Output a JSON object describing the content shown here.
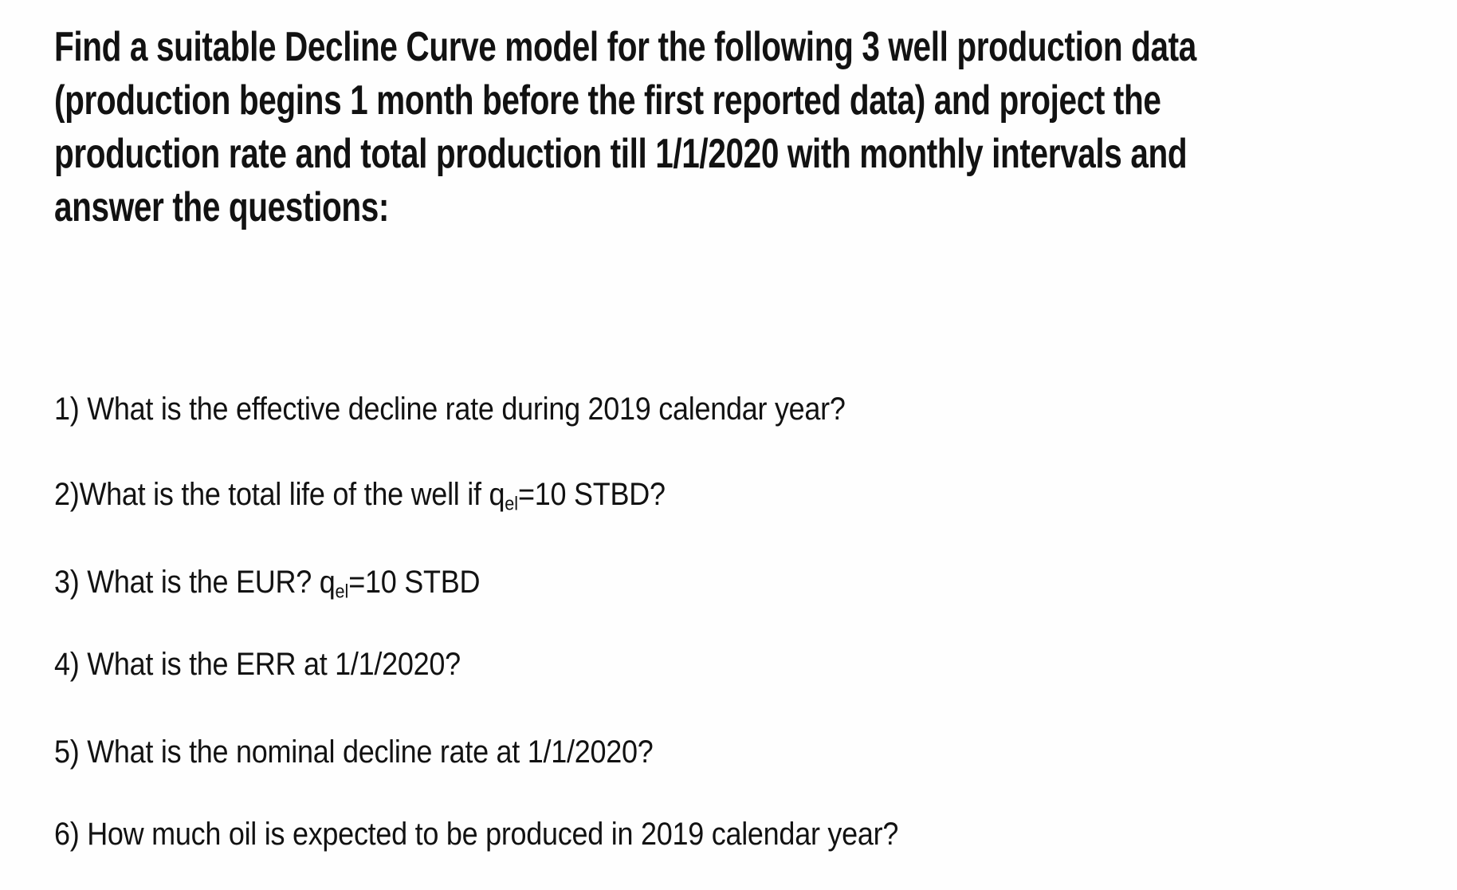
{
  "page": {
    "background_color": "#ffffff",
    "text_color": "#121212"
  },
  "heading": {
    "lines": [
      "Find a suitable Decline Curve model for the following 3 well production data",
      "(production begins 1 month before the first reported data) and project the",
      "production rate and total production till 1/1/2020 with monthly intervals and",
      "answer the questions:"
    ]
  },
  "questions": [
    {
      "pre": "1) What is the effective decline rate during 2019 calendar year?",
      "sub": "",
      "post": ""
    },
    {
      "pre": "2)What is the total life of the well if q",
      "sub": "el",
      "post": "=10 STBD?"
    },
    {
      "pre": "3) What is the EUR? q",
      "sub": "el",
      "post": "=10 STBD"
    },
    {
      "pre": "4) What is the ERR at 1/1/2020?",
      "sub": "",
      "post": ""
    },
    {
      "pre": "5) What is the nominal decline rate at 1/1/2020?",
      "sub": "",
      "post": ""
    },
    {
      "pre": "6) How much oil is expected to be produced in 2019 calendar year?",
      "sub": "",
      "post": ""
    }
  ]
}
